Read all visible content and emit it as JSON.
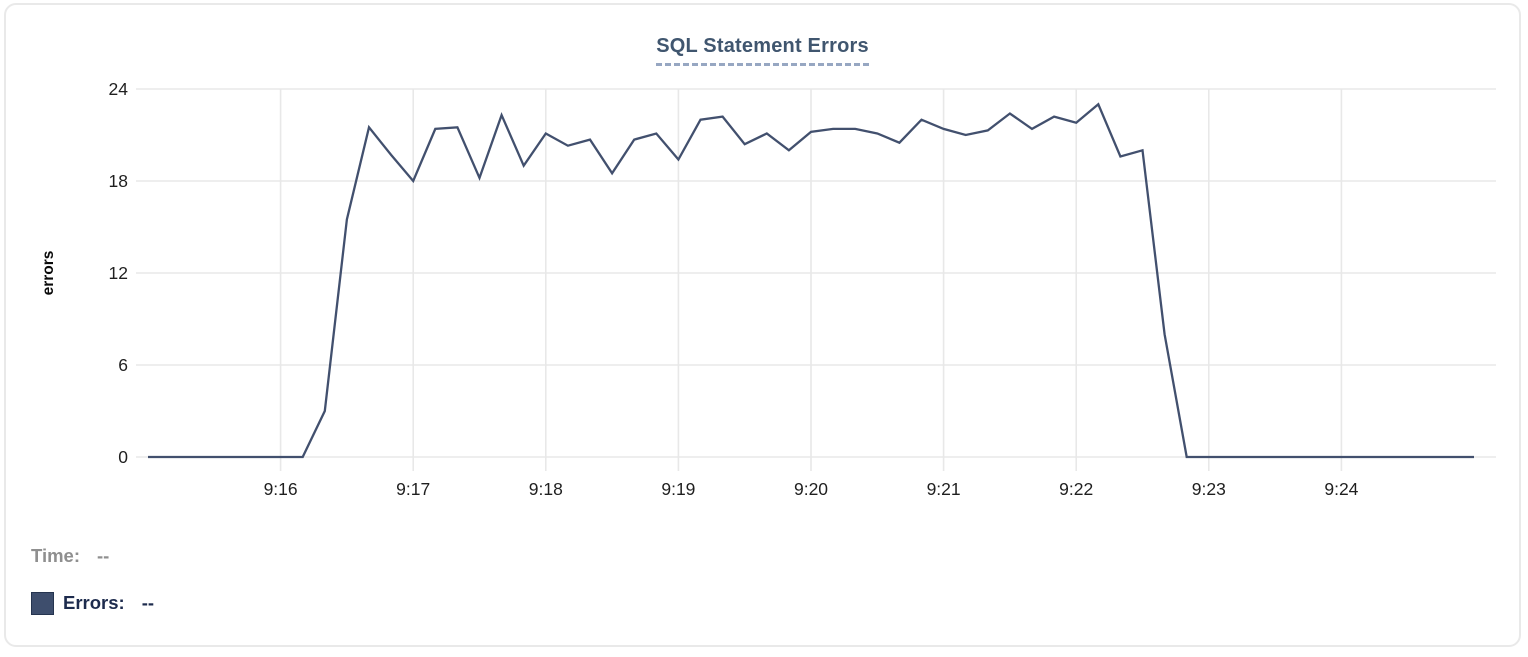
{
  "chart_data": {
    "type": "line",
    "title": "SQL Statement Errors",
    "xlabel": "",
    "ylabel": "errors",
    "xlim": [
      "9:15:00",
      "9:25:00"
    ],
    "ylim": [
      0,
      24
    ],
    "grid": true,
    "legend_position": "bottom-left",
    "x_ticks": [
      "9:16",
      "9:17",
      "9:18",
      "9:19",
      "9:20",
      "9:21",
      "9:22",
      "9:23",
      "9:24"
    ],
    "y_ticks": [
      0,
      6,
      12,
      18,
      24
    ],
    "series": [
      {
        "name": "Errors",
        "color": "#42506e",
        "points": [
          [
            "9:15:00",
            0
          ],
          [
            "9:15:10",
            0
          ],
          [
            "9:15:20",
            0
          ],
          [
            "9:15:30",
            0
          ],
          [
            "9:15:40",
            0
          ],
          [
            "9:15:50",
            0
          ],
          [
            "9:16:00",
            0
          ],
          [
            "9:16:10",
            0
          ],
          [
            "9:16:20",
            3
          ],
          [
            "9:16:30",
            15.5
          ],
          [
            "9:16:40",
            21.5
          ],
          [
            "9:16:50",
            19.7
          ],
          [
            "9:17:00",
            18
          ],
          [
            "9:17:10",
            21.4
          ],
          [
            "9:17:20",
            21.5
          ],
          [
            "9:17:30",
            18.2
          ],
          [
            "9:17:40",
            22.3
          ],
          [
            "9:17:50",
            19
          ],
          [
            "9:18:00",
            21.1
          ],
          [
            "9:18:10",
            20.3
          ],
          [
            "9:18:20",
            20.7
          ],
          [
            "9:18:30",
            18.5
          ],
          [
            "9:18:40",
            20.7
          ],
          [
            "9:18:50",
            21.1
          ],
          [
            "9:19:00",
            19.4
          ],
          [
            "9:19:10",
            22.0
          ],
          [
            "9:19:20",
            22.2
          ],
          [
            "9:19:30",
            20.4
          ],
          [
            "9:19:40",
            21.1
          ],
          [
            "9:19:50",
            20
          ],
          [
            "9:20:00",
            21.2
          ],
          [
            "9:20:10",
            21.4
          ],
          [
            "9:20:20",
            21.4
          ],
          [
            "9:20:30",
            21.1
          ],
          [
            "9:20:40",
            20.5
          ],
          [
            "9:20:50",
            22
          ],
          [
            "9:21:00",
            21.4
          ],
          [
            "9:21:10",
            21
          ],
          [
            "9:21:20",
            21.3
          ],
          [
            "9:21:30",
            22.4
          ],
          [
            "9:21:40",
            21.4
          ],
          [
            "9:21:50",
            22.2
          ],
          [
            "9:22:00",
            21.8
          ],
          [
            "9:22:10",
            23
          ],
          [
            "9:22:20",
            19.6
          ],
          [
            "9:22:30",
            20
          ],
          [
            "9:22:40",
            8
          ],
          [
            "9:22:50",
            0
          ],
          [
            "9:23:00",
            0
          ],
          [
            "9:23:10",
            0
          ],
          [
            "9:23:20",
            0
          ],
          [
            "9:23:30",
            0
          ],
          [
            "9:23:40",
            0
          ],
          [
            "9:23:50",
            0
          ],
          [
            "9:24:00",
            0
          ],
          [
            "9:24:10",
            0
          ],
          [
            "9:24:20",
            0
          ],
          [
            "9:24:30",
            0
          ],
          [
            "9:24:40",
            0
          ],
          [
            "9:24:50",
            0
          ],
          [
            "9:25:00",
            0
          ]
        ]
      }
    ]
  },
  "legend": {
    "time_label": "Time:",
    "time_value": "--",
    "errors_label": "Errors:",
    "errors_value": "--",
    "swatch_color": "#3e4e6d"
  },
  "colors": {
    "line": "#42506e",
    "grid": "#e8e8e8"
  }
}
